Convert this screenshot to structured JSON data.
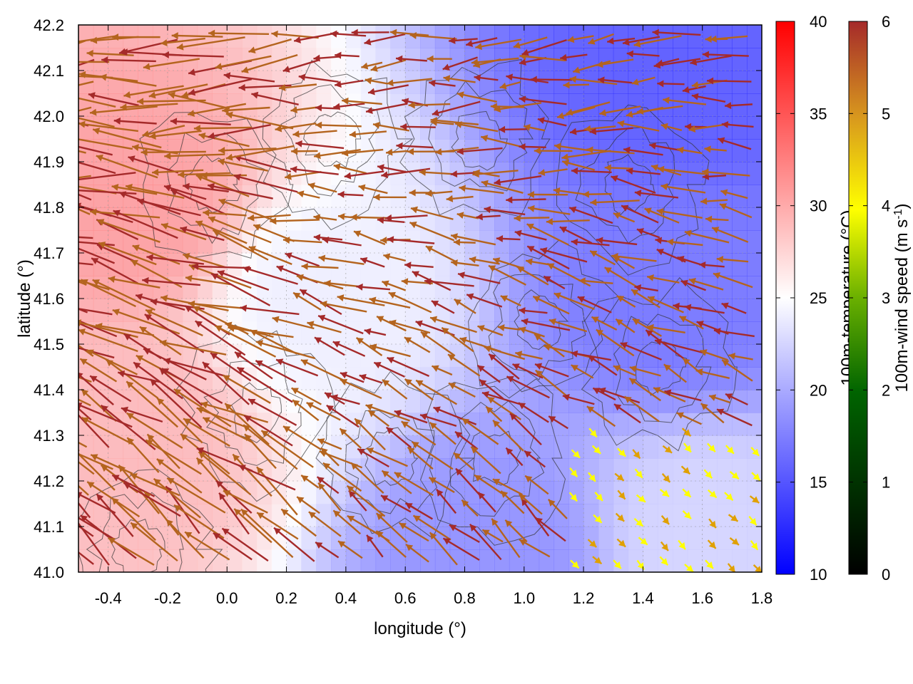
{
  "chart_data": {
    "type": "heatmap",
    "xlabel": "longitude (°)",
    "ylabel": "latitude (°)",
    "xlim": [
      -0.5,
      1.8
    ],
    "ylim": [
      41.0,
      42.2
    ],
    "x_ticks": [
      "-0.4",
      "-0.2",
      "0.0",
      "0.2",
      "0.4",
      "0.6",
      "0.8",
      "1.0",
      "1.2",
      "1.4",
      "1.6",
      "1.8"
    ],
    "y_ticks": [
      "41.0",
      "41.1",
      "41.2",
      "41.3",
      "41.4",
      "41.5",
      "41.6",
      "41.7",
      "41.8",
      "41.9",
      "42.0",
      "42.1",
      "42.2"
    ],
    "color_field": {
      "name": "100m-temperature (°C)",
      "range": [
        10,
        40
      ],
      "ticks": [
        "10",
        "15",
        "20",
        "25",
        "30",
        "35",
        "40"
      ],
      "colors": {
        "low": "#0000ff",
        "mid": "#ffffff",
        "high": "#ff0000"
      },
      "regions": [
        {
          "description": "warm region west",
          "lon": -0.3,
          "lat": 41.8,
          "value": 32
        },
        {
          "description": "warm band southwest",
          "lon": -0.3,
          "lat": 41.3,
          "value": 30
        },
        {
          "description": "mild centre",
          "lon": 0.3,
          "lat": 41.6,
          "value": 24
        },
        {
          "description": "cool northeast",
          "lon": 1.5,
          "lat": 42.1,
          "value": 13
        },
        {
          "description": "cool east",
          "lon": 1.5,
          "lat": 41.6,
          "value": 15
        },
        {
          "description": "cool south-centre",
          "lon": 0.9,
          "lat": 41.05,
          "value": 17
        },
        {
          "description": "mild southeast coast",
          "lon": 1.6,
          "lat": 41.1,
          "value": 22
        }
      ]
    },
    "vector_field": {
      "name": "100m-wind speed (m s-1)",
      "range": [
        0,
        6
      ],
      "ticks": [
        "0",
        "1",
        "2",
        "3",
        "4",
        "5",
        "6"
      ],
      "colors": [
        "#000000",
        "#006400",
        "#5aa500",
        "#ffff00",
        "#e0a000",
        "#b4641e",
        "#a52a2a"
      ],
      "dominant_direction": "westward / north-westward across most of the domain, north-eastward in the south-east",
      "max_speed_region": "western and central domain",
      "weak_wind_region": "south-east coast and scattered northern points"
    }
  }
}
